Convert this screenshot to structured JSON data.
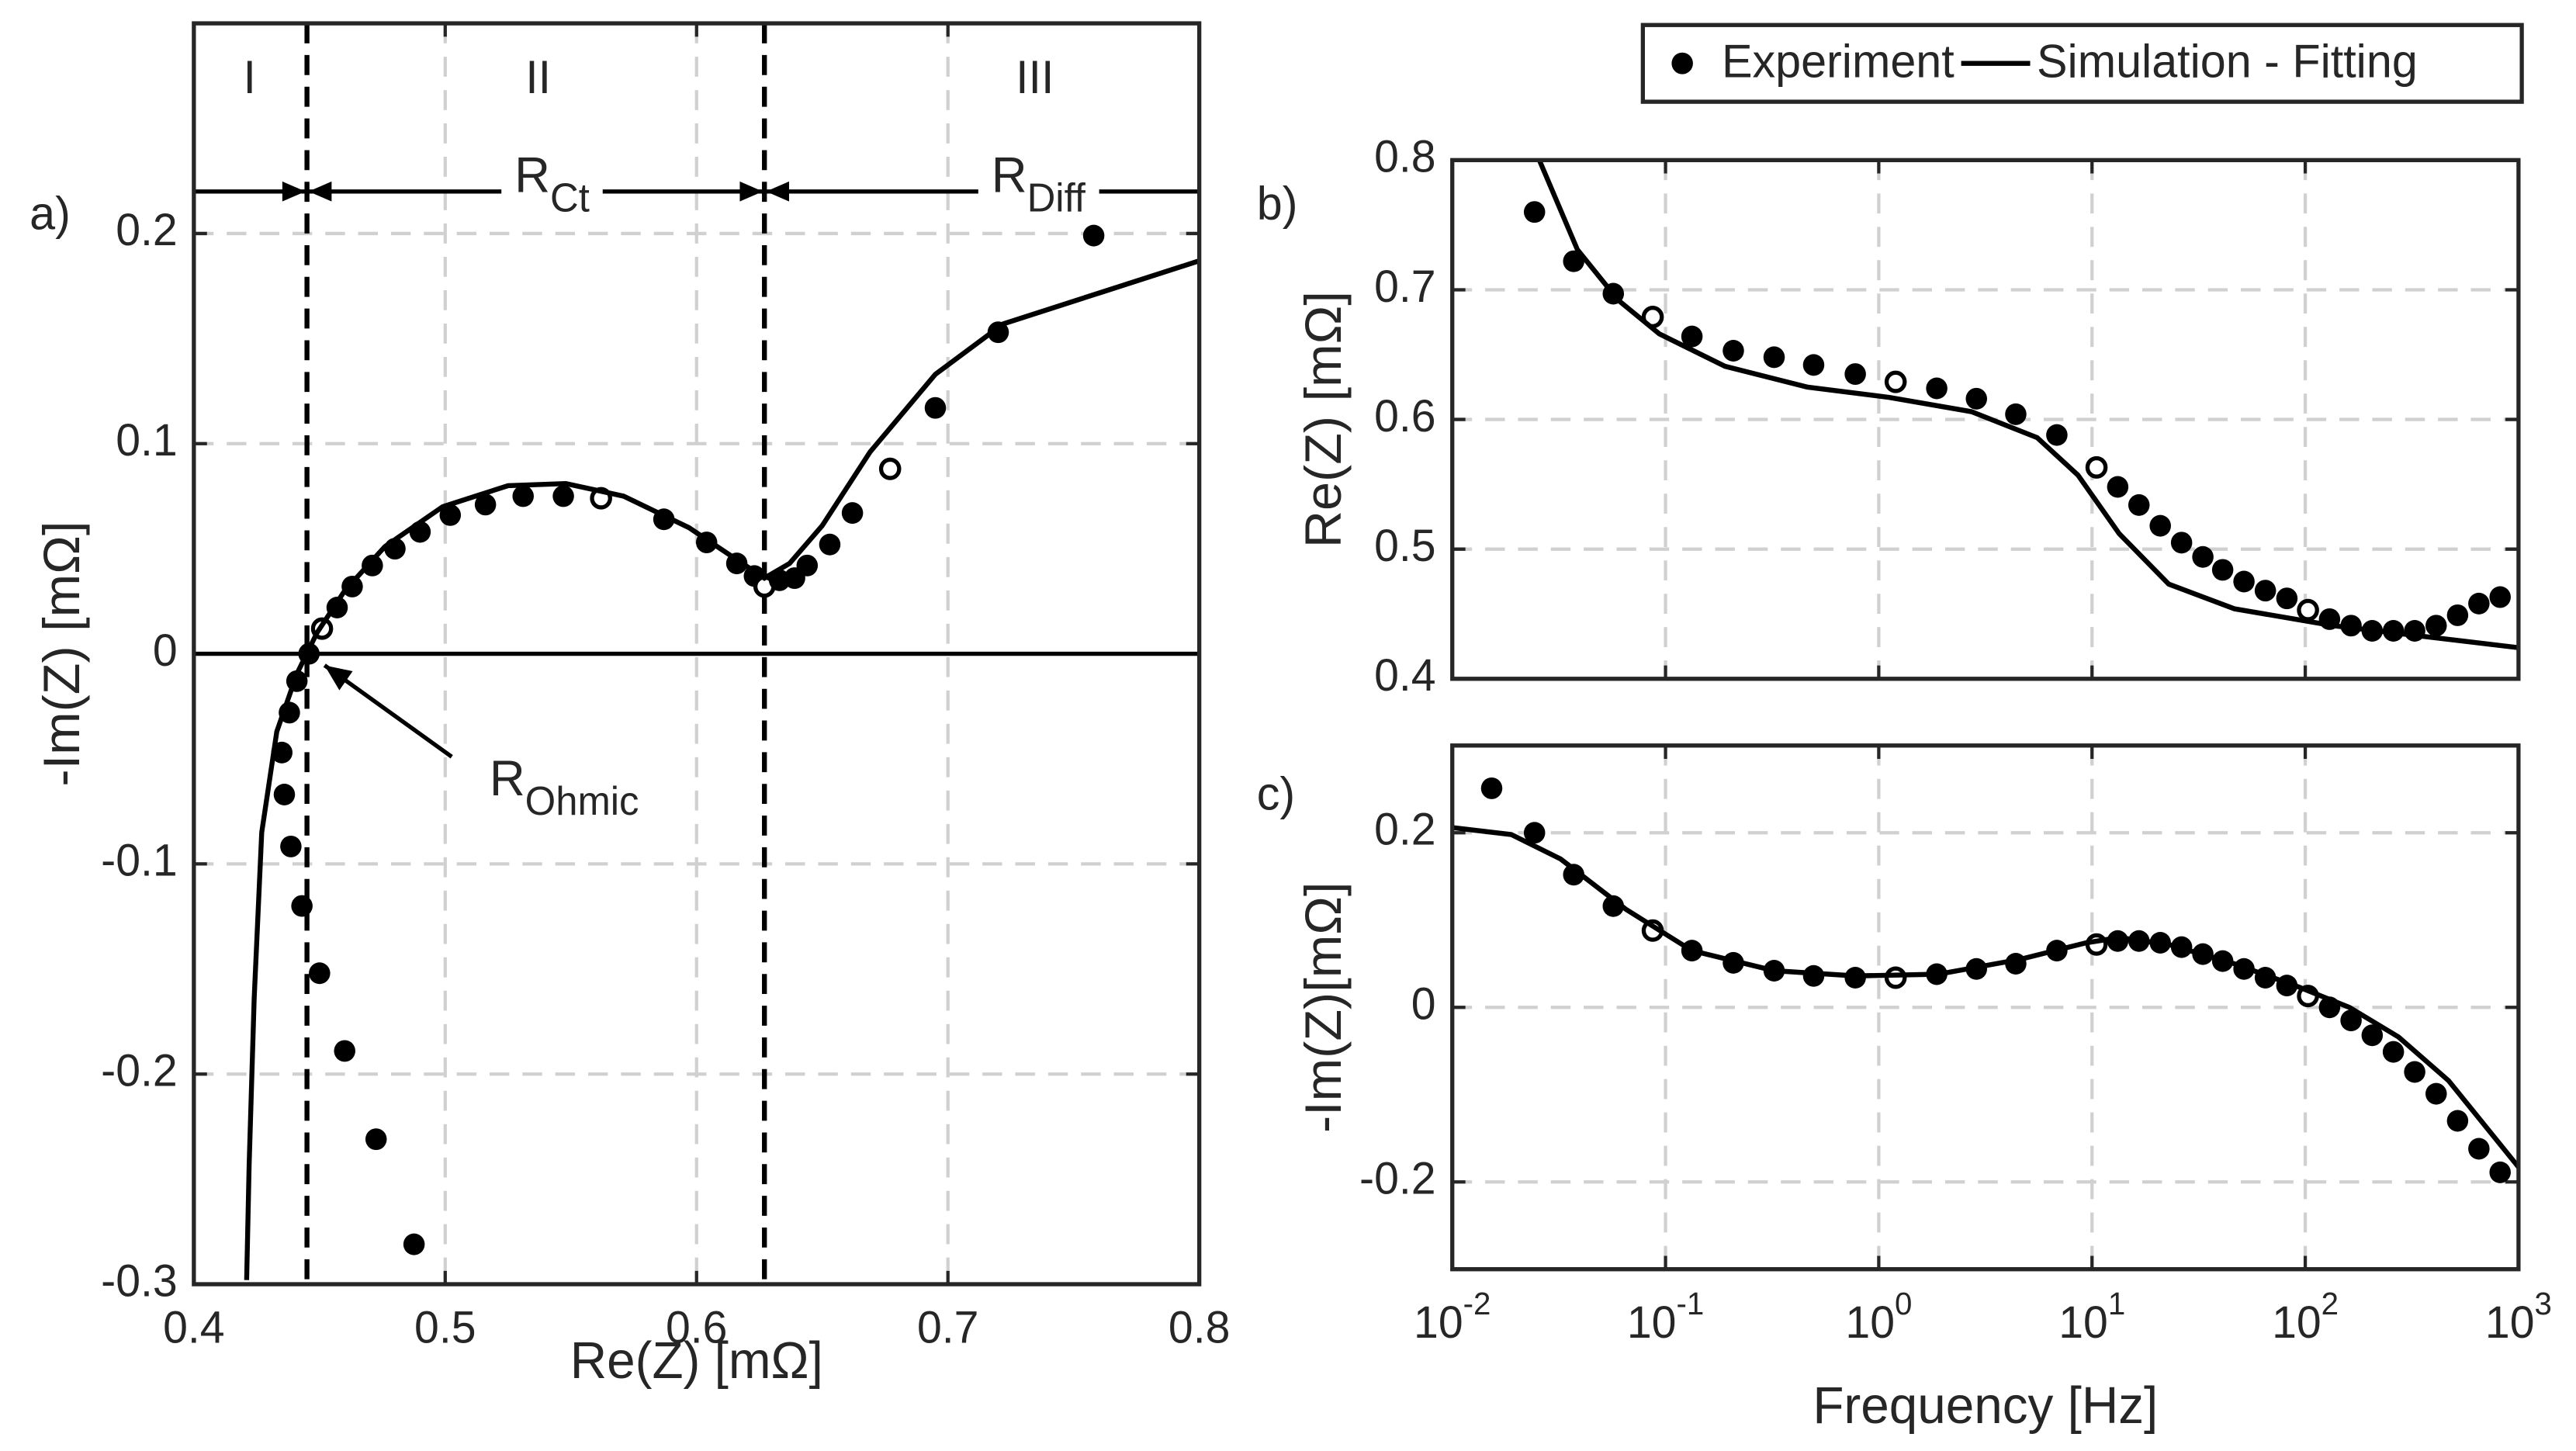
{
  "chart_data": [
    {
      "type": "scatter",
      "panel_label": "a)",
      "xlabel": "Re(Z) [mΩ]",
      "ylabel": "-Im(Z) [mΩ]",
      "xlim": [
        0.4,
        0.8
      ],
      "ylim": [
        -0.3,
        0.3
      ],
      "xticks": [
        0.4,
        0.5,
        0.6,
        0.7,
        0.8
      ],
      "yticks": [
        -0.3,
        -0.2,
        -0.1,
        0,
        0.1,
        0.2
      ],
      "grid": true,
      "zero_line": true,
      "vlines": [
        0.445,
        0.627
      ],
      "dimension_y": 0.22,
      "series": [
        {
          "type": "scatter",
          "color": "#000000",
          "open_markers": [
            11,
            22,
            27,
            33
          ],
          "x": [
            0.4876,
            0.4725,
            0.46,
            0.45,
            0.443,
            0.4386,
            0.436,
            0.435,
            0.438,
            0.441,
            0.4458,
            0.451,
            0.457,
            0.463,
            0.471,
            0.48,
            0.49,
            0.502,
            0.516,
            0.531,
            0.547,
            0.562,
            0.562,
            0.587,
            0.604,
            0.616,
            0.623,
            0.627,
            0.633,
            0.639,
            0.644,
            0.653,
            0.662,
            0.677,
            0.695,
            0.72,
            0.758
          ],
          "values": [
            -0.281,
            -0.231,
            -0.189,
            -0.152,
            -0.12,
            -0.0917,
            -0.067,
            -0.047,
            -0.028,
            -0.013,
            0.0,
            0.012,
            0.022,
            0.032,
            0.042,
            0.05,
            0.058,
            0.066,
            0.071,
            0.075,
            0.075,
            0.074,
            0.074,
            0.064,
            0.053,
            0.043,
            0.037,
            0.032,
            0.035,
            0.036,
            0.042,
            0.052,
            0.067,
            0.088,
            0.117,
            0.153,
            0.199
          ]
        },
        {
          "type": "line",
          "color": "#000000",
          "x": [
            0.421,
            0.422,
            0.424,
            0.427,
            0.433,
            0.441,
            0.449,
            0.46,
            0.476,
            0.499,
            0.525,
            0.548,
            0.571,
            0.597,
            0.617,
            0.627,
            0.637,
            0.65,
            0.669,
            0.695,
            0.722,
            0.761,
            0.8
          ],
          "values": [
            -0.298,
            -0.243,
            -0.164,
            -0.085,
            -0.037,
            -0.0095,
            0.01,
            0.03,
            0.051,
            0.07,
            0.08,
            0.081,
            0.075,
            0.06,
            0.044,
            0.036,
            0.043,
            0.061,
            0.096,
            0.133,
            0.157,
            0.172,
            0.187
          ]
        }
      ],
      "annotations": [
        {
          "text": "I",
          "x": 0.4222,
          "y": 0.2727
        },
        {
          "text": "II",
          "x": 0.537,
          "y": 0.2727
        },
        {
          "text": "III",
          "x": 0.7346,
          "y": 0.2727
        },
        {
          "text": "R",
          "sub": "Ct",
          "x": 0.5425,
          "y": 0.226
        },
        {
          "text": "R",
          "sub": "Diff",
          "x": 0.736,
          "y": 0.226
        },
        {
          "text": "R",
          "sub": "Ohmic",
          "x": 0.5176,
          "y": -0.061,
          "arrow_from": [
            0.5026,
            -0.049
          ],
          "arrow_to": [
            0.452,
            -0.0055
          ]
        }
      ]
    },
    {
      "type": "scatter",
      "panel_label": "b)",
      "ylabel": "Re(Z) [mΩ]",
      "xscale": "log",
      "xlim": [
        0.01,
        1000
      ],
      "ylim": [
        0.4,
        0.8
      ],
      "xticks": [
        0.01,
        0.1,
        1,
        10,
        100,
        1000
      ],
      "xtick_labels": false,
      "yticks": [
        0.4,
        0.5,
        0.6,
        0.7,
        0.8
      ],
      "grid": true,
      "legend": "top-right-outside",
      "series": [
        {
          "type": "scatter",
          "name": "Experiment",
          "color": "#000000",
          "open_markers": [
            3,
            9,
            14,
            24
          ],
          "x": [
            0.0243,
            0.0371,
            0.0569,
            0.0871,
            0.133,
            0.208,
            0.323,
            0.495,
            0.776,
            1.2,
            1.87,
            2.87,
            4.39,
            6.84,
            10.5,
            13.2,
            16.6,
            20.9,
            26.3,
            33.1,
            41,
            51.6,
            65,
            82,
            103,
            130,
            164,
            206,
            259,
            326,
            411,
            518,
            652,
            820
          ],
          "values": [
            0.76,
            0.722,
            0.697,
            0.679,
            0.664,
            0.653,
            0.648,
            0.642,
            0.635,
            0.629,
            0.624,
            0.616,
            0.604,
            0.588,
            0.563,
            0.548,
            0.534,
            0.518,
            0.505,
            0.494,
            0.484,
            0.475,
            0.468,
            0.462,
            0.453,
            0.446,
            0.441,
            0.437,
            0.437,
            0.437,
            0.441,
            0.449,
            0.458,
            0.463
          ]
        },
        {
          "type": "line",
          "name": "Simulation - Fitting",
          "color": "#000000",
          "x": [
            0.0256,
            0.0386,
            0.06,
            0.0935,
            0.19,
            0.461,
            1.12,
            2.72,
            5.53,
            8.6,
            13.4,
            22.9,
            46.5,
            135,
            389,
            1000
          ],
          "values": [
            0.8,
            0.731,
            0.692,
            0.666,
            0.641,
            0.625,
            0.617,
            0.606,
            0.586,
            0.557,
            0.512,
            0.473,
            0.454,
            0.441,
            0.432,
            0.424
          ]
        }
      ]
    },
    {
      "type": "scatter",
      "panel_label": "c)",
      "xlabel": "Frequency [Hz]",
      "ylabel": "-Im(Z)[mΩ]",
      "xscale": "log",
      "xlim": [
        0.01,
        1000
      ],
      "ylim": [
        -0.3,
        0.3
      ],
      "xticks": [
        {
          "value": 0.01,
          "label": "10",
          "sup": "-2"
        },
        {
          "value": 0.1,
          "label": "10",
          "sup": "-1"
        },
        {
          "value": 1,
          "label": "10",
          "sup": "0"
        },
        {
          "value": 10,
          "label": "10",
          "sup": "1"
        },
        {
          "value": 100,
          "label": "10",
          "sup": "2"
        },
        {
          "value": 1000,
          "label": "10",
          "sup": "3"
        }
      ],
      "yticks": [
        -0.2,
        0,
        0.2
      ],
      "grid": true,
      "series": [
        {
          "type": "scatter",
          "color": "#000000",
          "open_markers": [
            4,
            10,
            15,
            25
          ],
          "x": [
            0.0153,
            0.0243,
            0.0371,
            0.0569,
            0.0871,
            0.133,
            0.208,
            0.323,
            0.495,
            0.776,
            1.2,
            1.87,
            2.87,
            4.39,
            6.84,
            10.5,
            13.2,
            16.6,
            20.9,
            26.3,
            33.1,
            41,
            51.6,
            65,
            82,
            103,
            130,
            164,
            206,
            259,
            326,
            411,
            518,
            652,
            820
          ],
          "values": [
            0.251,
            0.2,
            0.152,
            0.116,
            0.088,
            0.065,
            0.051,
            0.042,
            0.036,
            0.034,
            0.034,
            0.038,
            0.044,
            0.05,
            0.065,
            0.072,
            0.076,
            0.076,
            0.074,
            0.069,
            0.061,
            0.053,
            0.044,
            0.034,
            0.025,
            0.013,
            0.0,
            -0.015,
            -0.032,
            -0.051,
            -0.074,
            -0.099,
            -0.13,
            -0.162,
            -0.189
          ]
        },
        {
          "type": "line",
          "color": "#000000",
          "x": [
            0.01,
            0.0189,
            0.0322,
            0.0655,
            0.133,
            0.323,
            0.78,
            1.9,
            4.6,
            9.4,
            13.4,
            22.9,
            46.5,
            94,
            161,
            274,
            470,
            1000
          ],
          "values": [
            0.206,
            0.198,
            0.17,
            0.112,
            0.065,
            0.042,
            0.036,
            0.038,
            0.055,
            0.074,
            0.08,
            0.072,
            0.05,
            0.023,
            0.0,
            -0.034,
            -0.084,
            -0.183
          ]
        }
      ]
    }
  ]
}
